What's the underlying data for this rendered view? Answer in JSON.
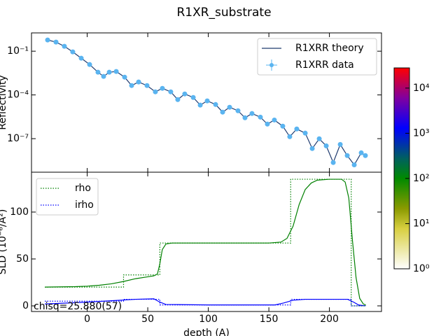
{
  "chart_data": [
    {
      "type": "line",
      "title": "R1XR_substrate",
      "ylabel": "Reflectivity",
      "log_y": true,
      "xlim": [
        0,
        0.33
      ],
      "ylim": [
        5e-10,
        1.8
      ],
      "yticks": [
        {
          "value": 0.1,
          "label": "10⁻¹"
        },
        {
          "value": 0.0001,
          "label": "10⁻⁴"
        },
        {
          "value": 1e-07,
          "label": "10⁻⁷"
        }
      ],
      "legend": "upper right",
      "series": [
        {
          "name": "R1XRR theory",
          "color": "#1f3a6e",
          "style": "line",
          "x": [
            0.0152,
            0.0231,
            0.031,
            0.0389,
            0.0469,
            0.0548,
            0.0627,
            0.068,
            0.0733,
            0.0799,
            0.0878,
            0.0944,
            0.101,
            0.1089,
            0.1168,
            0.1234,
            0.1313,
            0.1379,
            0.1445,
            0.1525,
            0.1591,
            0.1657,
            0.1736,
            0.1802,
            0.1868,
            0.1947,
            0.2013,
            0.2079,
            0.2158,
            0.2224,
            0.229,
            0.2369,
            0.2435,
            0.2501,
            0.2581,
            0.2647,
            0.2713,
            0.2779,
            0.2845,
            0.2911,
            0.2977,
            0.3043,
            0.3109,
            0.3148
          ],
          "values": [
            0.587,
            0.42,
            0.217,
            0.0895,
            0.033,
            0.0122,
            0.00361,
            0.00186,
            0.00361,
            0.00404,
            0.00166,
            0.00044,
            0.00077,
            0.00044,
            0.000163,
            0.000283,
            0.000163,
            4.8e-05,
            0.000117,
            6.7e-05,
            2e-05,
            3.9e-05,
            2.2e-05,
            6.6e-06,
            1.43e-05,
            8.2e-06,
            2.7e-06,
            5.3e-06,
            3e-06,
            1e-06,
            1.9e-06,
            7.2e-07,
            1.36e-07,
            4.6e-07,
            2.4e-07,
            2.1e-08,
            9.8e-08,
            3.2e-08,
            2.3e-09,
            4e-08,
            6.9e-09,
            1.6e-09,
            1.07e-08,
            6.9e-09
          ]
        },
        {
          "name": "R1XRR data",
          "color": "#5ab4f0",
          "style": "points",
          "x": [
            0.0152,
            0.0231,
            0.031,
            0.0389,
            0.0469,
            0.0548,
            0.0627,
            0.068,
            0.0733,
            0.0799,
            0.0878,
            0.0944,
            0.101,
            0.1089,
            0.1168,
            0.1234,
            0.1313,
            0.1379,
            0.1445,
            0.1525,
            0.1591,
            0.1657,
            0.1736,
            0.1802,
            0.1868,
            0.1947,
            0.2013,
            0.2079,
            0.2158,
            0.2224,
            0.229,
            0.2369,
            0.2435,
            0.2501,
            0.2581,
            0.2647,
            0.2713,
            0.2779,
            0.2845,
            0.2911,
            0.2977,
            0.3043,
            0.3109,
            0.3148
          ],
          "values": [
            0.587,
            0.42,
            0.217,
            0.0895,
            0.033,
            0.0122,
            0.00361,
            0.00186,
            0.00361,
            0.00404,
            0.00166,
            0.00044,
            0.00077,
            0.00044,
            0.000163,
            0.000283,
            0.000163,
            4.8e-05,
            0.000117,
            6.7e-05,
            2e-05,
            3.9e-05,
            2.2e-05,
            6.6e-06,
            1.43e-05,
            8.2e-06,
            2.7e-06,
            5.3e-06,
            3e-06,
            1e-06,
            1.9e-06,
            7.2e-07,
            1.36e-07,
            4.6e-07,
            2.4e-07,
            2.1e-08,
            9.8e-08,
            3.2e-08,
            2.3e-09,
            4e-08,
            6.9e-09,
            1.6e-09,
            1.07e-08,
            6.9e-09
          ]
        }
      ]
    },
    {
      "type": "line",
      "xlabel": "depth (A)",
      "ylabel": "SLD (10⁻⁶/Å²)",
      "annotation": "chisq=25.880(57)",
      "xlim": [
        -46,
        243
      ],
      "ylim": [
        -6,
        142.5
      ],
      "xticks": [
        0,
        50,
        100,
        150,
        200
      ],
      "yticks": [
        0,
        50,
        100
      ],
      "legend": "upper left",
      "series": [
        {
          "name": "rho",
          "color": "#008000",
          "style": "dotted",
          "x": [
            -35,
            30,
            30,
            60,
            60,
            168,
            168,
            218,
            218,
            230
          ],
          "values": [
            20,
            20,
            33,
            33,
            67,
            67,
            135,
            135,
            0,
            0
          ]
        },
        {
          "name": "irho",
          "color": "#0000ff",
          "style": "dotted",
          "x": [
            -35,
            30,
            30,
            60,
            60,
            168,
            168,
            218,
            218,
            230
          ],
          "values": [
            5,
            5,
            7,
            7,
            1,
            1,
            7,
            7,
            0,
            0
          ]
        }
      ],
      "profiles": [
        {
          "color": "#008000",
          "x": [
            -35,
            -10,
            0,
            10,
            20,
            30,
            40,
            50,
            55,
            58,
            60,
            62,
            65,
            70,
            100,
            150,
            160,
            165,
            170,
            175,
            180,
            185,
            190,
            200,
            210,
            213,
            216,
            219,
            222,
            225,
            228,
            230
          ],
          "values": [
            20,
            20.5,
            21,
            22,
            23.5,
            26,
            29,
            31,
            32,
            34,
            45,
            60,
            66,
            67,
            67,
            67,
            68,
            72,
            85,
            108,
            124,
            131,
            134,
            135,
            135,
            132,
            115,
            70,
            30,
            8,
            2,
            1
          ]
        },
        {
          "color": "#0000ff",
          "x": [
            -35,
            0,
            20,
            40,
            55,
            60,
            65,
            100,
            155,
            162,
            170,
            180,
            215,
            220,
            224,
            228,
            230
          ],
          "values": [
            2,
            4,
            5.5,
            7,
            7.5,
            4,
            1.5,
            1,
            1,
            3,
            6,
            7,
            7,
            4,
            1,
            0.3,
            0.2
          ]
        }
      ]
    },
    {
      "type": "colorbar",
      "log_y": true,
      "ylim": [
        1,
        28000
      ],
      "yticks": [
        {
          "value": 1,
          "label": "10⁰"
        },
        {
          "value": 10,
          "label": "10¹"
        },
        {
          "value": 100,
          "label": "10²"
        },
        {
          "value": 1000,
          "label": "10³"
        },
        {
          "value": 10000,
          "label": "10⁴"
        }
      ]
    }
  ]
}
